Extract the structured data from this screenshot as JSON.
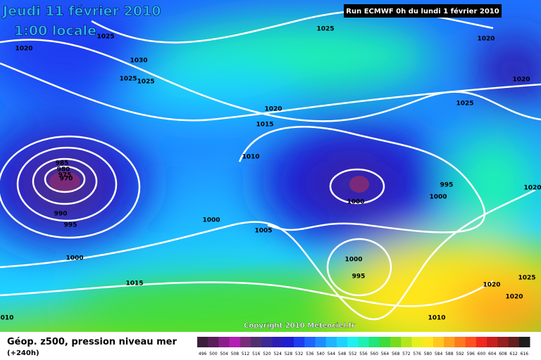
{
  "header": {
    "date": "Jeudi 11 février 2010",
    "time": "1:00 locale",
    "run": "Run ECMWF 0h du lundi 1 février 2010"
  },
  "copyright": "Copyright 2010 Meteociel.fr",
  "footer": {
    "title": "Géop. z500, pression niveau mer",
    "lead": "(+240h)"
  },
  "colorbar": {
    "labels": [
      496,
      500,
      504,
      508,
      512,
      516,
      520,
      524,
      528,
      532,
      536,
      540,
      544,
      548,
      552,
      556,
      560,
      564,
      568,
      572,
      576,
      580,
      584,
      588,
      592,
      596,
      600,
      604,
      608,
      612,
      616
    ],
    "colors": [
      "#3c1e3c",
      "#5a1e5a",
      "#8c1e8c",
      "#b41eb4",
      "#7a2a7a",
      "#50306e",
      "#3c2896",
      "#2d1eb4",
      "#1e1ed2",
      "#1e3cf0",
      "#1e64ff",
      "#1e8cff",
      "#1eb4ff",
      "#1ed2ff",
      "#1ef0f0",
      "#1ef0b4",
      "#1ee678",
      "#3cdc3c",
      "#78dc1e",
      "#b4e61e",
      "#e6f01e",
      "#ffe61e",
      "#ffc81e",
      "#ffa01e",
      "#ff781e",
      "#ff501e",
      "#f0281e",
      "#c81e1e",
      "#961e1e",
      "#641e1e",
      "#1e1e1e"
    ]
  },
  "isobars": [
    "1025",
    "1025",
    "1020",
    "1020",
    "1030",
    "1025",
    "1025",
    "1020",
    "1025",
    "1020",
    "1015",
    "1010",
    "985",
    "980",
    "975",
    "970",
    "995",
    "1000",
    "1020",
    "1000",
    "990",
    "995",
    "1000",
    "1005",
    "1000",
    "1000",
    "995",
    "1015",
    "1020",
    "1025",
    "1020",
    "1010",
    "010"
  ]
}
